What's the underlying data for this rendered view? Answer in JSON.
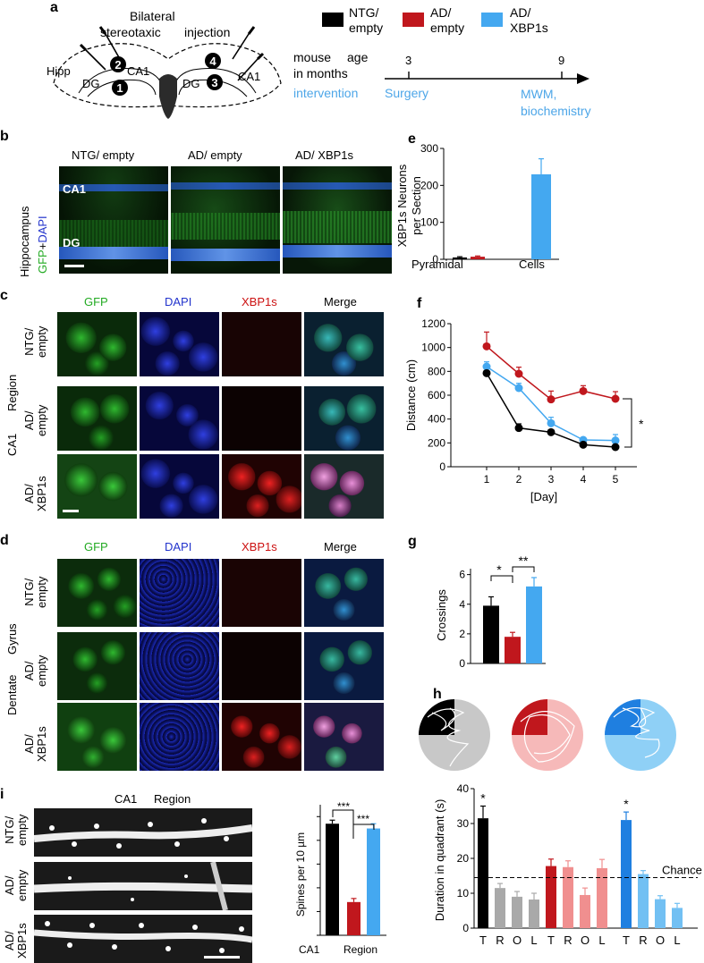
{
  "panels": {
    "a": "a",
    "b": "b",
    "c": "c",
    "d": "d",
    "e": "e",
    "f": "f",
    "g": "g",
    "h": "h",
    "i": "i"
  },
  "schematic": {
    "bilateral": "Bilateral",
    "stereotaxic": "stereotaxic",
    "injection": "injection",
    "hipp": "Hipp",
    "ca1_left": "CA1",
    "ca1_right": "CA1",
    "dg_left": "DG",
    "dg_right": "DG",
    "sites": [
      "1",
      "2",
      "3",
      "4"
    ]
  },
  "legend": [
    {
      "label_line1": "NTG/",
      "label_line2": "empty",
      "color": "#000000"
    },
    {
      "label_line1": "AD/",
      "label_line2": "empty",
      "color": "#c0171d"
    },
    {
      "label_line1": "AD/",
      "label_line2": "XBP1s",
      "color": "#44a8f0"
    }
  ],
  "timeline": {
    "mouse": "mouse",
    "age": "age",
    "in_months": "in months",
    "intervention": "intervention",
    "tick_3": "3",
    "tick_9": "9",
    "surgery": "Surgery",
    "mwm_line1": "MWM,",
    "mwm_line2": "biochemistry"
  },
  "panel_b": {
    "headers": [
      "NTG/ empty",
      "AD/ empty",
      "AD/ XBP1s"
    ],
    "side_label": "Hippocampus",
    "stain_gfp": "GFP",
    "stain_plus": "+",
    "stain_dapi": "DAPI",
    "ca1": "CA1",
    "dg": "DG"
  },
  "panel_c": {
    "headers": [
      "GFP",
      "DAPI",
      "XBP1s",
      "Merge"
    ],
    "rows": [
      [
        "NTG/",
        "empty"
      ],
      [
        "AD/",
        "empty"
      ],
      [
        "AD/",
        "XBP1s"
      ]
    ],
    "side_label_1": "CA1",
    "side_label_2": "Region"
  },
  "panel_d": {
    "headers": [
      "GFP",
      "DAPI",
      "XBP1s",
      "Merge"
    ],
    "rows": [
      [
        "NTG/",
        "empty"
      ],
      [
        "AD/",
        "empty"
      ],
      [
        "AD/",
        "XBP1s"
      ]
    ],
    "side_label_1": "Dentate",
    "side_label_2": "Gyrus"
  },
  "panel_i": {
    "title_1": "CA1",
    "title_2": "Region",
    "rows": [
      [
        "NTG/",
        "empty"
      ],
      [
        "AD/",
        "empty"
      ],
      [
        "AD/",
        "XBP1s"
      ]
    ]
  },
  "chart_data": [
    {
      "id": "e",
      "type": "bar",
      "ylabel_line1": "XBP1s  Neurons",
      "ylabel_line2": "per  Section",
      "yticks": [
        "0",
        "100",
        "200",
        "300"
      ],
      "ylim": [
        0,
        300
      ],
      "xlabel_left": "Pyramidal",
      "xlabel_right": "Cells",
      "series": [
        {
          "color": "#000000",
          "value": 5,
          "err": 2
        },
        {
          "color": "#c0171d",
          "value": 7,
          "err": 2
        },
        {
          "color": "#44a8f0",
          "value": 230,
          "err": 42
        }
      ]
    },
    {
      "id": "f",
      "type": "line",
      "ylabel": "Distance (cm)",
      "xlabel": "[Day]",
      "x": [
        1,
        2,
        3,
        4,
        5
      ],
      "xticks": [
        "1",
        "2",
        "3",
        "4",
        "5"
      ],
      "yticks": [
        "0",
        "200",
        "400",
        "600",
        "800",
        "1000",
        "1200"
      ],
      "ylim": [
        0,
        1200
      ],
      "sig": "*",
      "series": [
        {
          "color": "#c0171d",
          "values": [
            1010,
            780,
            565,
            635,
            570
          ],
          "err": [
            120,
            55,
            70,
            45,
            60
          ]
        },
        {
          "color": "#44a8f0",
          "values": [
            840,
            660,
            365,
            225,
            220
          ],
          "err": [
            40,
            40,
            50,
            20,
            50
          ]
        },
        {
          "color": "#000000",
          "values": [
            785,
            325,
            290,
            185,
            165
          ],
          "err": [
            20,
            35,
            15,
            15,
            20
          ]
        }
      ]
    },
    {
      "id": "g",
      "type": "bar",
      "ylabel": "Crossings",
      "yticks": [
        "0",
        "2",
        "4",
        "6"
      ],
      "ylim": [
        0,
        6.4
      ],
      "sig_1": "*",
      "sig_2": "**",
      "series": [
        {
          "color": "#000000",
          "value": 3.9,
          "err": 0.6
        },
        {
          "color": "#c0171d",
          "value": 1.8,
          "err": 0.3
        },
        {
          "color": "#44a8f0",
          "value": 5.2,
          "err": 0.6
        }
      ]
    },
    {
      "id": "h",
      "type": "bar",
      "ylabel": "Duration in quadrant (s)",
      "yticks": [
        "0",
        "10",
        "20",
        "30",
        "40"
      ],
      "ylim": [
        0,
        40
      ],
      "chance_label": "Chance",
      "chance": 14.5,
      "sig_ntg": "*",
      "sig_xbp": "*",
      "groups": [
        {
          "categories": [
            "T",
            "R",
            "O",
            "L"
          ],
          "values": [
            31.5,
            11.5,
            9,
            8.2
          ],
          "err": [
            3.5,
            1.3,
            1.5,
            1.8
          ],
          "colors": [
            "#000000",
            "#a9a9a9",
            "#a9a9a9",
            "#a9a9a9"
          ]
        },
        {
          "categories": [
            "T",
            "R",
            "O",
            "L"
          ],
          "values": [
            17.8,
            17.5,
            9.5,
            17.2
          ],
          "err": [
            2,
            1.8,
            2,
            2.5
          ],
          "colors": [
            "#c0171d",
            "#f08f8f",
            "#f08f8f",
            "#f08f8f"
          ]
        },
        {
          "categories": [
            "T",
            "R",
            "O",
            "L"
          ],
          "values": [
            31,
            15.5,
            8.3,
            5.8
          ],
          "err": [
            2.3,
            1,
            1,
            1.3
          ],
          "colors": [
            "#1f7fe0",
            "#72c0f3",
            "#72c0f3",
            "#72c0f3"
          ]
        }
      ]
    },
    {
      "id": "i",
      "type": "bar",
      "ylabel": "Spines per 10 µm",
      "yticks": [
        "0",
        "2",
        "4",
        "6",
        "8",
        "10"
      ],
      "ylim": [
        0,
        11
      ],
      "xlabel_left": "CA1",
      "xlabel_right": "Region",
      "sig_1": "***",
      "sig_2": "***",
      "series": [
        {
          "color": "#000000",
          "value": 9.4,
          "err": 0.3
        },
        {
          "color": "#c0171d",
          "value": 2.8,
          "err": 0.3
        },
        {
          "color": "#44a8f0",
          "value": 9.0,
          "err": 0.4
        }
      ]
    }
  ]
}
